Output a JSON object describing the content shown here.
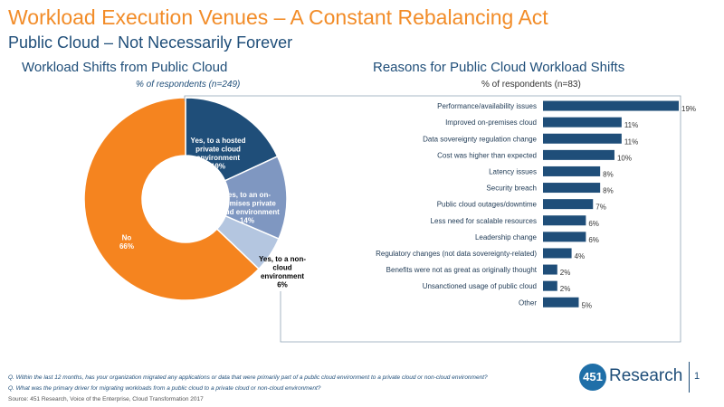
{
  "header": {
    "title": "Workload Execution Venues – A Constant Rebalancing Act",
    "subtitle": "Public Cloud – Not Necessarily Forever"
  },
  "chart_data": [
    {
      "type": "pie",
      "title": "Workload Shifts from Public Cloud",
      "subtitle": "% of respondents  (n=249)",
      "slices": [
        {
          "label": "Yes, to a hosted private cloud environment",
          "lines": [
            "Yes, to a hosted",
            "private cloud",
            "environment",
            "19%"
          ],
          "value": 19,
          "color": "#1f4e79",
          "text_color": "#ffffff"
        },
        {
          "label": "Yes, to an on-premises private cloud environment",
          "lines": [
            "Yes, to an on-",
            "premises private",
            "cloud environment",
            "14%"
          ],
          "value": 14,
          "color": "#7f97c1",
          "text_color": "#ffffff"
        },
        {
          "label": "Yes, to a non-cloud environment",
          "lines": [
            "Yes, to a non-",
            "cloud",
            "environment",
            "6%"
          ],
          "value": 6,
          "color": "#b4c6e0",
          "text_color": "#000000"
        },
        {
          "label": "No",
          "lines": [
            "No",
            "66%"
          ],
          "value": 66,
          "color": "#f5841f",
          "text_color": "#ffffff"
        }
      ]
    },
    {
      "type": "bar",
      "orientation": "horizontal",
      "title": "Reasons for Public Cloud Workload Shifts",
      "subtitle": "% of respondents (n=83)",
      "categories": [
        "Performance/availability issues",
        "Improved on-premises cloud",
        "Data sovereignty regulation change",
        "Cost was higher than expected",
        "Latency issues",
        "Security breach",
        "Public cloud outages/downtime",
        "Less need for scalable resources",
        "Leadership change",
        "Regulatory changes (not data sovereignty-related)",
        "Benefits were not as great as originally thought",
        "Unsanctioned usage of public cloud",
        "Other"
      ],
      "values": [
        19,
        11,
        11,
        10,
        8,
        8,
        7,
        6,
        6,
        4,
        2,
        2,
        5
      ],
      "value_labels": [
        "19%",
        "11%",
        "11%",
        "10%",
        "8%",
        "8%",
        "7%",
        "6%",
        "6%",
        "4%",
        "2%",
        "2%",
        "5%"
      ],
      "color": "#1f4e79",
      "xlim": [
        0,
        19
      ]
    }
  ],
  "footnotes": {
    "q1": "Q. Within the last 12 months, has your organization migrated any applications or data that were primarily part of a public cloud environment to a private cloud or non-cloud environment?",
    "q2": "Q. What was the primary driver for migrating workloads from a public cloud to a private cloud or non-cloud environment?",
    "source": "Source: 451 Research, Voice of the Enterprise, Cloud Transformation 2017"
  },
  "logo": {
    "number": "451",
    "text": "Research"
  },
  "page_number": "1"
}
